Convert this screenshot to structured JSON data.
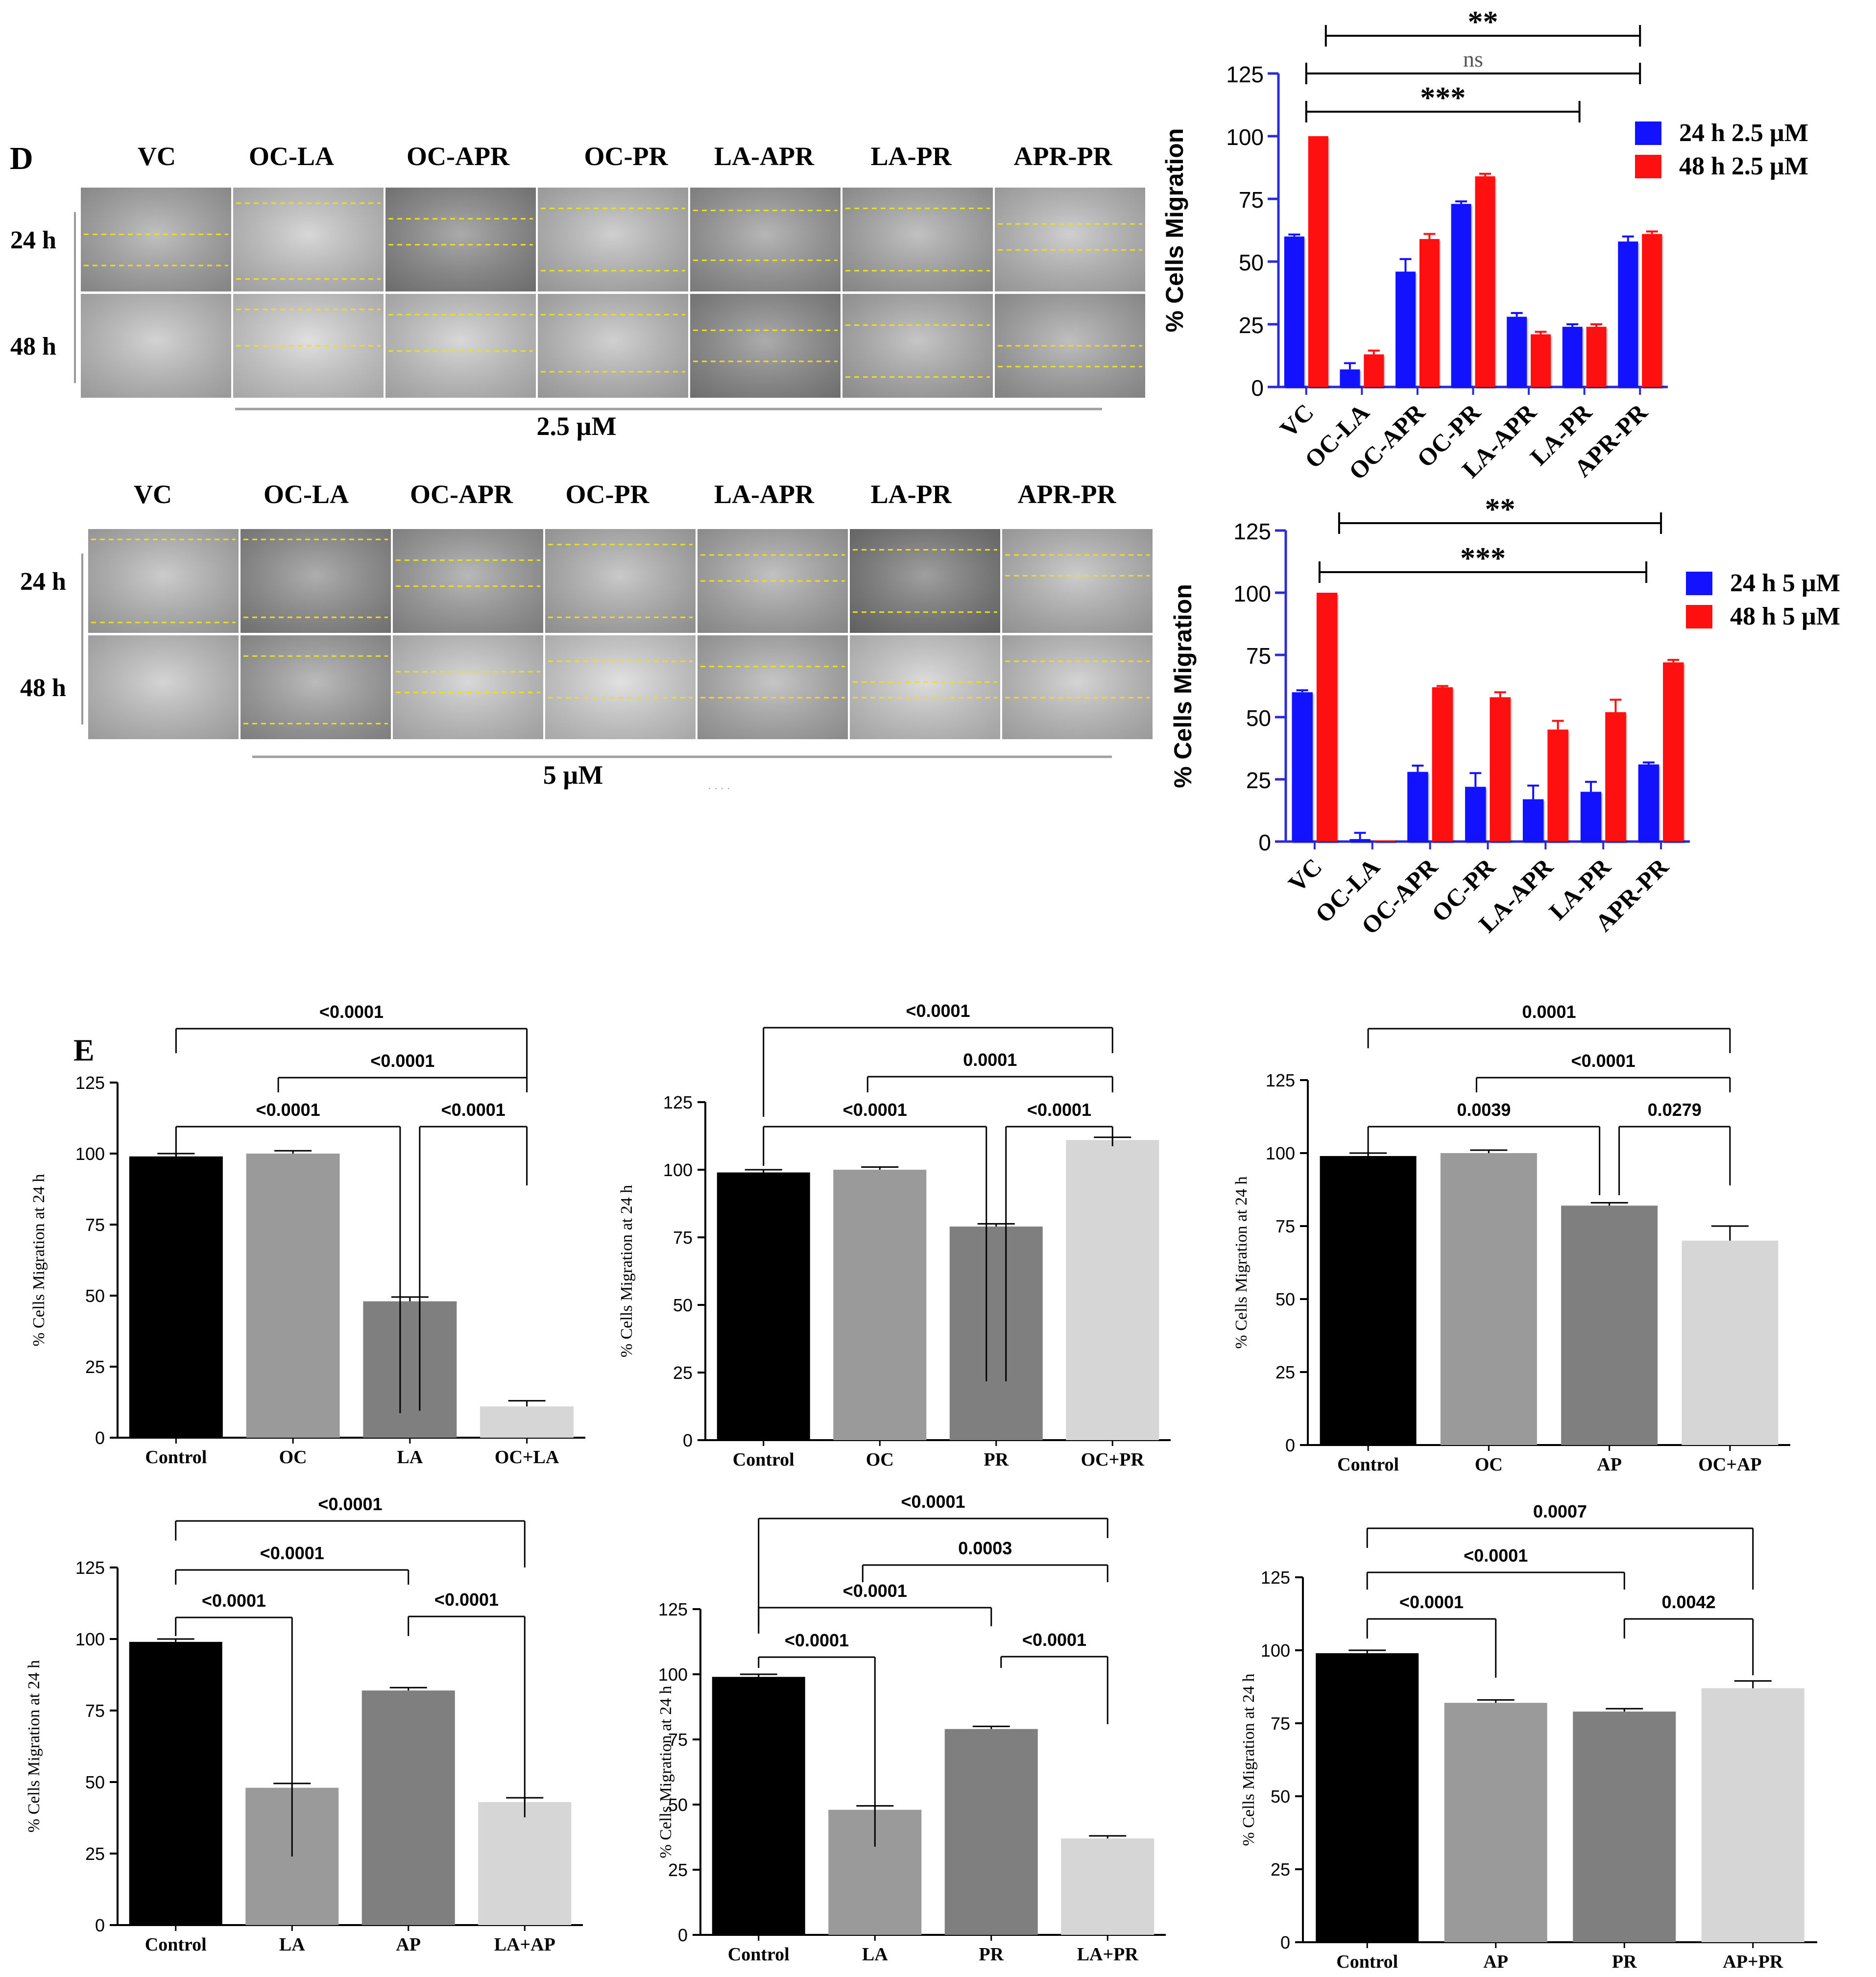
{
  "panels": {
    "D_label": "D",
    "E_label": "E",
    "concentration_top": "2.5 µM",
    "concentration_bottom": "5 µM",
    "stray_mark": "· · · ·"
  },
  "image_grid": {
    "columns": [
      "VC",
      "OC-LA",
      "OC-APR",
      "OC-PR",
      "LA-APR",
      "LA-PR",
      "APR-PR"
    ],
    "rows": [
      "24 h",
      "48 h"
    ],
    "tile_tones": [
      [
        "#a8a8a8",
        "#c8c8c8",
        "#8a8a8a",
        "#bdbdbd",
        "#9a9a9a",
        "#a9a9a9",
        "#bdbdbd"
      ],
      [
        "#c2c2c2",
        "#d4d4d4",
        "#c9c9c9",
        "#bfbfbf",
        "#8c8c8c",
        "#b0b0b0",
        "#a6a6a6"
      ]
    ],
    "tile_tones_5uM": [
      [
        "#b8b8b8",
        "#8e8e8e",
        "#9d9d9d",
        "#b4b4b4",
        "#aaaaaa",
        "#7a7a7a",
        "#b9b9b9"
      ],
      [
        "#c4c4c4",
        "#a0a0a0",
        "#cacaca",
        "#d6d6d6",
        "#b0b0b0",
        "#cfcfcf",
        "#c4c4c4"
      ]
    ],
    "scratch_color": "#e8e020"
  },
  "colors": {
    "blue": "#1212ff",
    "red": "#ff1010",
    "black": "#000000",
    "grey1": "#9a9a9a",
    "grey2": "#7f7f7f",
    "grey3": "#d6d6d6",
    "axis_blue": "#2a2ad8"
  },
  "chart_data": [
    {
      "id": "D1",
      "type": "bar",
      "ylabel": "% Cells Migration",
      "ylim": [
        0,
        125
      ],
      "yticks": [
        0,
        25,
        50,
        75,
        100,
        125
      ],
      "categories": [
        "VC",
        "OC-LA",
        "OC-APR",
        "OC-PR",
        "LA-APR",
        "LA-PR",
        "APR-PR"
      ],
      "series": [
        {
          "name": "24 h 2.5 µM",
          "color": "#1212ff",
          "values": [
            60,
            7,
            46,
            73,
            28,
            24,
            58
          ],
          "errors": [
            0.8,
            2.5,
            5,
            1,
            1.5,
            1,
            2
          ]
        },
        {
          "name": "48 h 2.5 µM",
          "color": "#ff1010",
          "values": [
            100,
            13,
            59,
            84,
            21,
            24,
            61
          ],
          "errors": [
            0,
            1.5,
            2,
            1,
            1,
            1,
            1
          ]
        }
      ],
      "legend": "top-right",
      "brackets": [
        {
          "from": 0,
          "to": 6,
          "label": "**"
        },
        {
          "from": 0,
          "to": 6,
          "label": "ns"
        },
        {
          "from": 0,
          "to": 5,
          "label": "***"
        }
      ]
    },
    {
      "id": "D2",
      "type": "bar",
      "ylabel": "% Cells Migration",
      "ylim": [
        0,
        125
      ],
      "yticks": [
        0,
        25,
        50,
        75,
        100,
        125
      ],
      "categories": [
        "VC",
        "OC-LA",
        "OC-APR",
        "OC-PR",
        "LA-APR",
        "LA-PR",
        "APR-PR"
      ],
      "series": [
        {
          "name": "24 h 5 µM",
          "color": "#1212ff",
          "values": [
            60,
            1,
            28,
            22,
            17,
            20,
            31
          ],
          "errors": [
            0.8,
            2.5,
            2.5,
            5.5,
            5.5,
            4,
            0.8
          ]
        },
        {
          "name": "48 h 5 µM",
          "color": "#ff1010",
          "values": [
            100,
            0.5,
            62,
            58,
            45,
            52,
            72
          ],
          "errors": [
            0,
            0,
            0.5,
            2,
            3.5,
            5,
            1
          ]
        }
      ],
      "legend": "top-right",
      "brackets": [
        {
          "from": 0,
          "to": 6,
          "label": "**"
        },
        {
          "from": 0,
          "to": 6,
          "label": "***"
        }
      ]
    },
    {
      "id": "E1",
      "type": "bar",
      "ylabel": "% Cells Migration at 24 h",
      "ylim": [
        0,
        125
      ],
      "yticks": [
        0,
        25,
        50,
        75,
        100,
        125
      ],
      "categories": [
        "Control",
        "OC",
        "LA",
        "OC+LA"
      ],
      "values": [
        99,
        100,
        48,
        11
      ],
      "errors": [
        1,
        1,
        1.5,
        2
      ],
      "brackets": [
        {
          "from": 0,
          "to": 3,
          "label": "<0.0001"
        },
        {
          "from": 1,
          "to": 3,
          "label": "<0.0001"
        },
        {
          "from": 0,
          "to": 2,
          "label": "<0.0001"
        },
        {
          "from": 2,
          "to": 3,
          "label": "<0.0001"
        }
      ]
    },
    {
      "id": "E2",
      "type": "bar",
      "ylabel": "% Cells Migration at 24 h",
      "ylim": [
        0,
        125
      ],
      "yticks": [
        0,
        25,
        50,
        75,
        100,
        125
      ],
      "categories": [
        "Control",
        "OC",
        "PR",
        "OC+PR"
      ],
      "values": [
        99,
        100,
        79,
        111
      ],
      "errors": [
        1,
        1,
        1,
        1
      ],
      "brackets": [
        {
          "from": 0,
          "to": 3,
          "label": "<0.0001"
        },
        {
          "from": 1,
          "to": 3,
          "label": "0.0001"
        },
        {
          "from": 0,
          "to": 2,
          "label": "<0.0001"
        },
        {
          "from": 2,
          "to": 3,
          "label": "<0.0001"
        }
      ]
    },
    {
      "id": "E3",
      "type": "bar",
      "ylabel": "% Cells Migration at 24 h",
      "ylim": [
        0,
        125
      ],
      "yticks": [
        0,
        25,
        50,
        75,
        100,
        125
      ],
      "categories": [
        "Control",
        "OC",
        "AP",
        "OC+AP"
      ],
      "values": [
        99,
        100,
        82,
        70
      ],
      "errors": [
        1,
        1,
        1,
        5
      ],
      "brackets": [
        {
          "from": 0,
          "to": 3,
          "label": "0.0001"
        },
        {
          "from": 1,
          "to": 3,
          "label": "<0.0001"
        },
        {
          "from": 0,
          "to": 2,
          "label": "0.0039"
        },
        {
          "from": 2,
          "to": 3,
          "label": "0.0279"
        }
      ]
    },
    {
      "id": "E4",
      "type": "bar",
      "ylabel": "% Cells Migration at 24 h",
      "ylim": [
        0,
        125
      ],
      "yticks": [
        0,
        25,
        50,
        75,
        100,
        125
      ],
      "categories": [
        "Control",
        "LA",
        "AP",
        "LA+AP"
      ],
      "values": [
        99,
        48,
        82,
        43
      ],
      "errors": [
        1,
        1.5,
        1,
        1.5
      ],
      "brackets": [
        {
          "from": 0,
          "to": 3,
          "label": "<0.0001"
        },
        {
          "from": 0,
          "to": 2,
          "label": "<0.0001"
        },
        {
          "from": 0,
          "to": 1,
          "label": "<0.0001"
        },
        {
          "from": 2,
          "to": 3,
          "label": "<0.0001"
        }
      ]
    },
    {
      "id": "E5",
      "type": "bar",
      "ylabel": "% Cells Migration at 24 h",
      "ylim": [
        0,
        125
      ],
      "yticks": [
        0,
        25,
        50,
        75,
        100,
        125
      ],
      "categories": [
        "Control",
        "LA",
        "PR",
        "LA+PR"
      ],
      "values": [
        99,
        48,
        79,
        37
      ],
      "errors": [
        1,
        1.5,
        1,
        1
      ],
      "brackets": [
        {
          "from": 0,
          "to": 3,
          "label": "<0.0001"
        },
        {
          "from": 1,
          "to": 3,
          "label": "0.0003"
        },
        {
          "from": 0,
          "to": 2,
          "label": "<0.0001"
        },
        {
          "from": 0,
          "to": 1,
          "label": "<0.0001"
        },
        {
          "from": 2,
          "to": 3,
          "label": "<0.0001"
        }
      ]
    },
    {
      "id": "E6",
      "type": "bar",
      "ylabel": "% Cells Migration at 24 h",
      "ylim": [
        0,
        125
      ],
      "yticks": [
        0,
        25,
        50,
        75,
        100,
        125
      ],
      "categories": [
        "Control",
        "AP",
        "PR",
        "AP+PR"
      ],
      "values": [
        99,
        82,
        79,
        87
      ],
      "errors": [
        1,
        1,
        1,
        2.5
      ],
      "brackets": [
        {
          "from": 0,
          "to": 3,
          "label": "0.0007"
        },
        {
          "from": 0,
          "to": 2,
          "label": "<0.0001"
        },
        {
          "from": 0,
          "to": 1,
          "label": "<0.0001"
        },
        {
          "from": 2,
          "to": 3,
          "label": "0.0042"
        }
      ]
    }
  ]
}
